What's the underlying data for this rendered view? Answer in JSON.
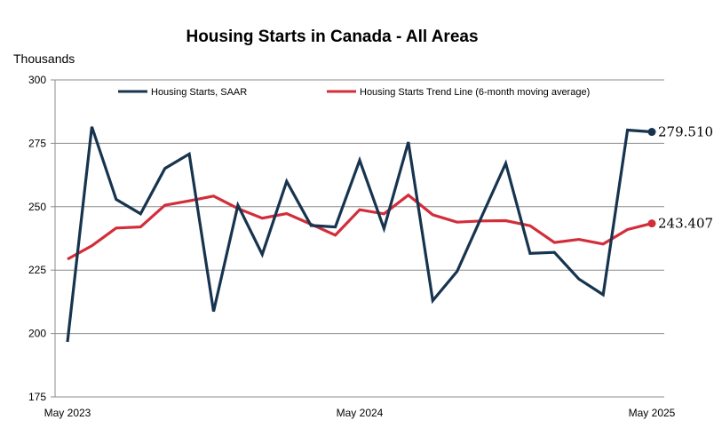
{
  "chart_data": {
    "type": "line",
    "title": "Housing Starts in Canada - All Areas",
    "ylabel": "Thousands",
    "ylim": [
      175,
      300
    ],
    "yticks": [
      175,
      200,
      225,
      250,
      275,
      300
    ],
    "x": [
      "May 2023",
      "Jun 2023",
      "Jul 2023",
      "Aug 2023",
      "Sep 2023",
      "Oct 2023",
      "Nov 2023",
      "Dec 2023",
      "Jan 2024",
      "Feb 2024",
      "Mar 2024",
      "Apr 2024",
      "May 2024",
      "Jun 2024",
      "Jul 2024",
      "Aug 2024",
      "Sep 2024",
      "Oct 2024",
      "Nov 2024",
      "Dec 2024",
      "Jan 2025",
      "Feb 2025",
      "Mar 2025",
      "Apr 2025",
      "May 2025"
    ],
    "x_tick_labels": [
      "May 2023",
      "May 2024",
      "May 2025"
    ],
    "grid": true,
    "legend_position": "top",
    "series": [
      {
        "name": "Housing Starts, SAAR",
        "color": "#17344f",
        "values": [
          196.7,
          281.5,
          252.9,
          247.2,
          265.1,
          270.8,
          208.7,
          250.6,
          231.2,
          260.0,
          242.6,
          242.0,
          268.3,
          241.4,
          275.5,
          213.0,
          224.5,
          245.9,
          267.1,
          231.6,
          232.0,
          221.5,
          215.3,
          280.2,
          279.51
        ],
        "end_label": "279.510"
      },
      {
        "name": "Housing Starts Trend Line (6-month moving average)",
        "color": "#d22e3a",
        "values": [
          229.3,
          234.6,
          241.6,
          242.0,
          250.6,
          252.3,
          254.2,
          249.3,
          245.5,
          247.3,
          243.1,
          238.8,
          248.8,
          247.2,
          254.6,
          246.8,
          243.9,
          244.4,
          244.5,
          242.5,
          235.9,
          237.1,
          235.3,
          241.0,
          243.407
        ],
        "end_label": "243.407"
      }
    ]
  }
}
